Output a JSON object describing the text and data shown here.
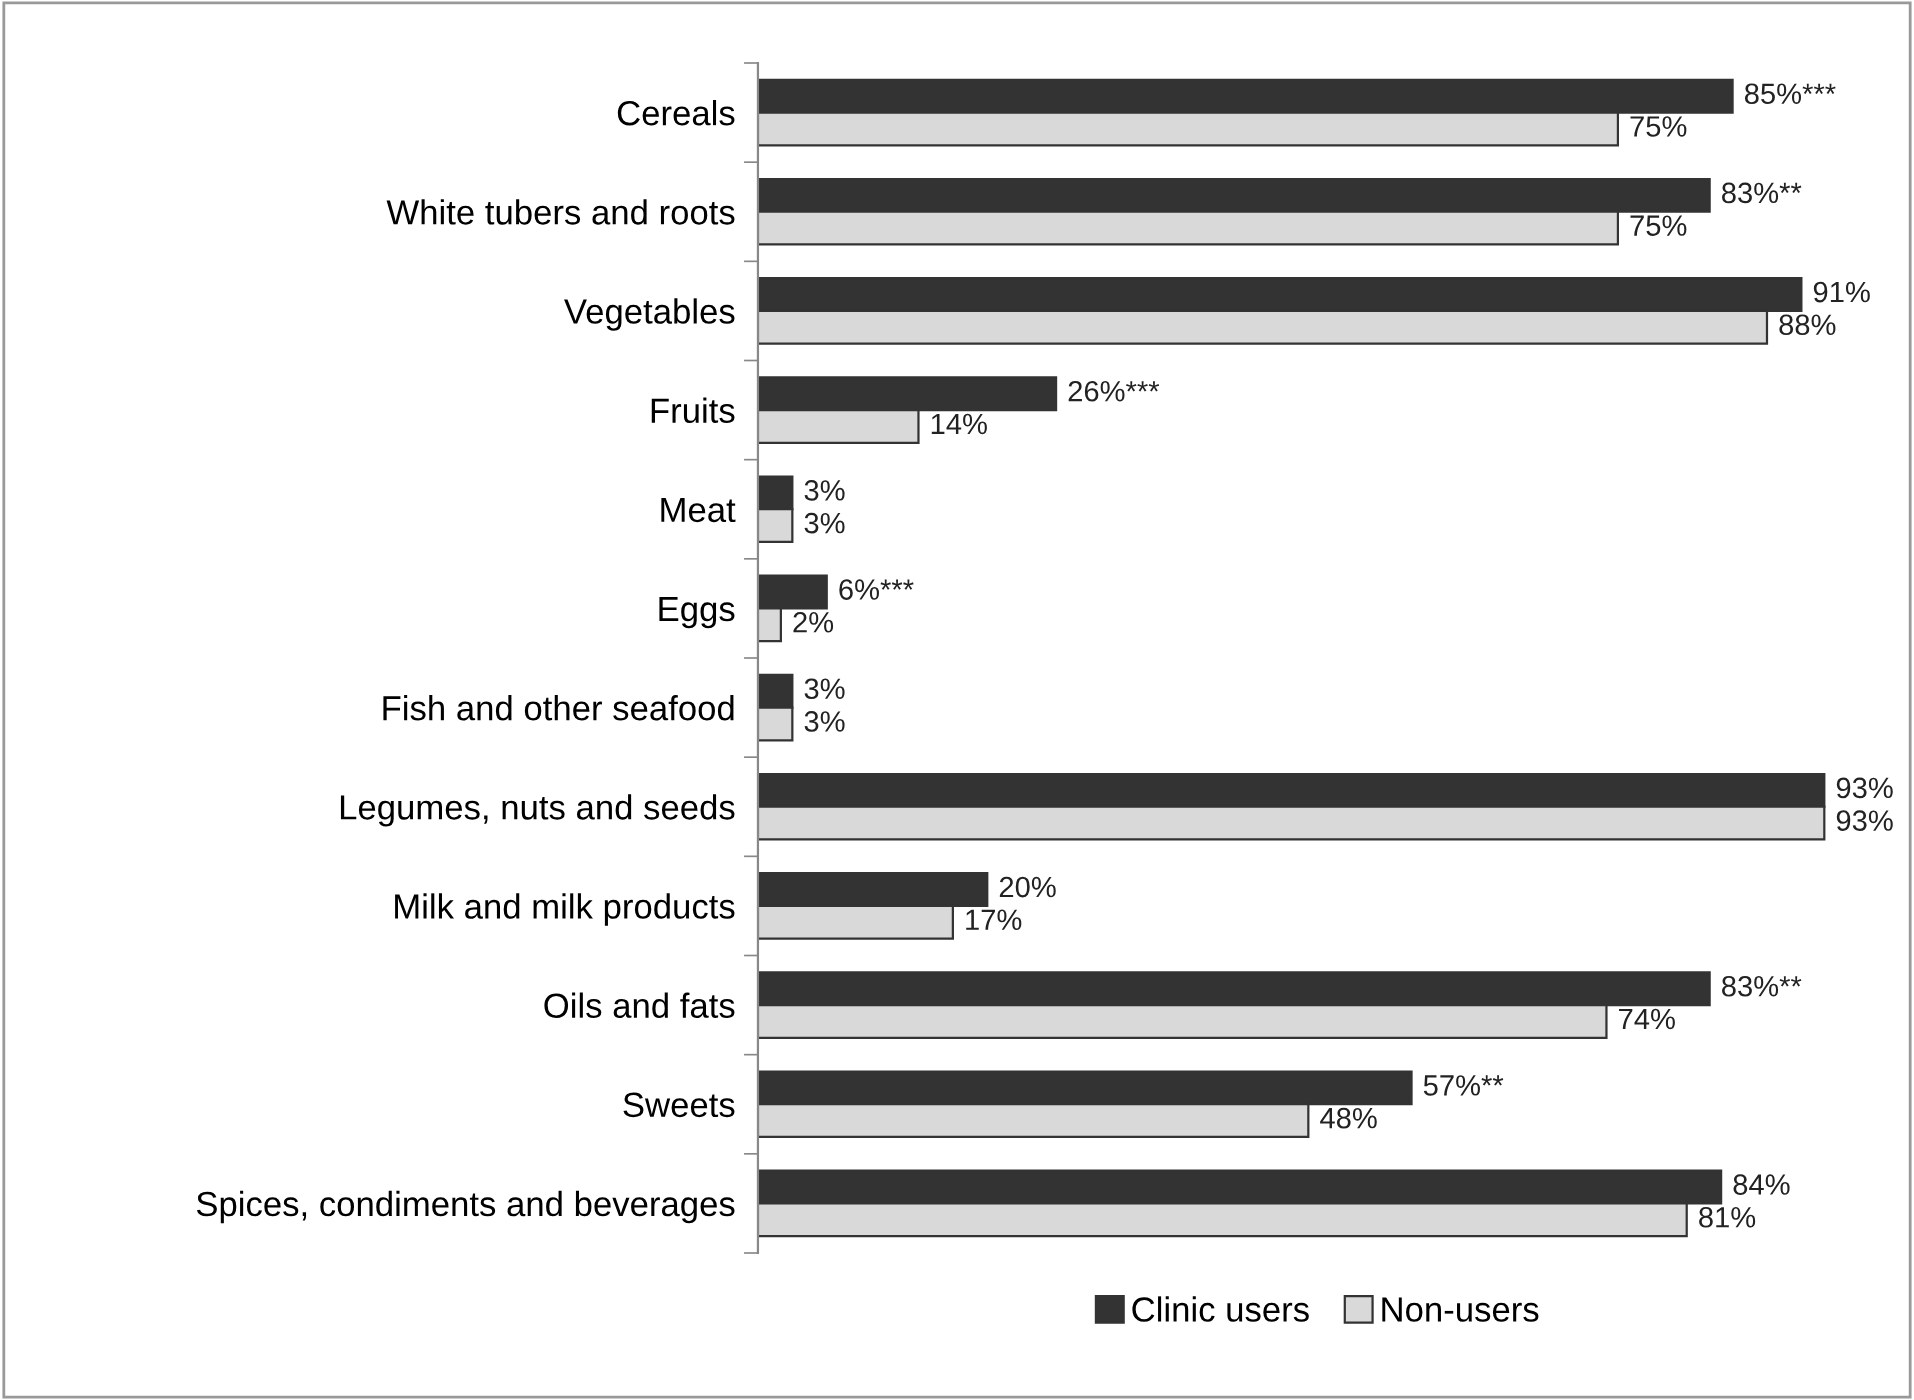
{
  "chart_data": {
    "type": "bar",
    "orientation": "horizontal",
    "categories": [
      "Cereals",
      "White tubers and roots",
      "Vegetables",
      "Fruits",
      "Meat",
      "Eggs",
      "Fish and other seafood",
      "Legumes, nuts and seeds",
      "Milk and milk products",
      "Oils and fats",
      "Sweets",
      "Spices, condiments and beverages"
    ],
    "series": [
      {
        "name": "Clinic users",
        "color": "#333333",
        "values": [
          85,
          83,
          91,
          26,
          3,
          6,
          3,
          93,
          20,
          83,
          57,
          84
        ],
        "value_labels": [
          "85%***",
          "83%**",
          "91%",
          "26%***",
          "3%",
          "6%***",
          "3%",
          "93%",
          "20%",
          "83%**",
          "57%**",
          "84%"
        ]
      },
      {
        "name": "Non-users",
        "color": "#d9d9d9",
        "values": [
          75,
          75,
          88,
          14,
          3,
          2,
          3,
          93,
          17,
          74,
          48,
          81
        ],
        "value_labels": [
          "75%",
          "75%",
          "88%",
          "14%",
          "3%",
          "2%",
          "3%",
          "93%",
          "17%",
          "74%",
          "48%",
          "81%"
        ]
      }
    ],
    "legend": "bottom",
    "grid": false
  }
}
